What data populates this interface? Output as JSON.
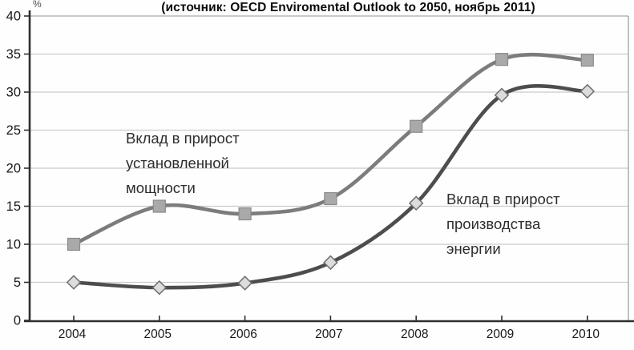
{
  "chart_data": {
    "type": "line",
    "title": "(источник: OECD Enviromental Outlook to 2050, ноябрь 2011)",
    "xlabel": "",
    "ylabel": "%",
    "ylim": [
      0,
      40
    ],
    "ytick_step": 5,
    "grid": true,
    "legend_position": "none",
    "line_style": "smooth",
    "categories": [
      "2004",
      "2005",
      "2006",
      "2007",
      "2008",
      "2009",
      "2010"
    ],
    "series": [
      {
        "name": "Вклад в прирост установленной мощности",
        "marker": "square",
        "line_color": "#7c7c7c",
        "marker_fill": "#a9a9a9",
        "marker_stroke": "#8a8a8a",
        "values": [
          10,
          15,
          14,
          16,
          25.5,
          34.3,
          34.2
        ]
      },
      {
        "name": "Вклад в прирост производства энергии",
        "marker": "diamond",
        "line_color": "#4d4d4d",
        "marker_fill": "#dcdcdc",
        "marker_stroke": "#6e6e6e",
        "values": [
          5,
          4.3,
          4.9,
          7.6,
          15.4,
          29.6,
          30.1
        ]
      }
    ],
    "annotations": [
      {
        "lines": [
          "Вклад в прирост",
          "установленной",
          "мощности"
        ]
      },
      {
        "lines": [
          "Вклад в прирост",
          "производства",
          "энергии"
        ]
      }
    ],
    "colors": {
      "axis": "#2f2f2f",
      "grid": "#cbcbcb",
      "plot_border": "#a8a8a8",
      "tick_text": "#1a1a1a"
    }
  }
}
